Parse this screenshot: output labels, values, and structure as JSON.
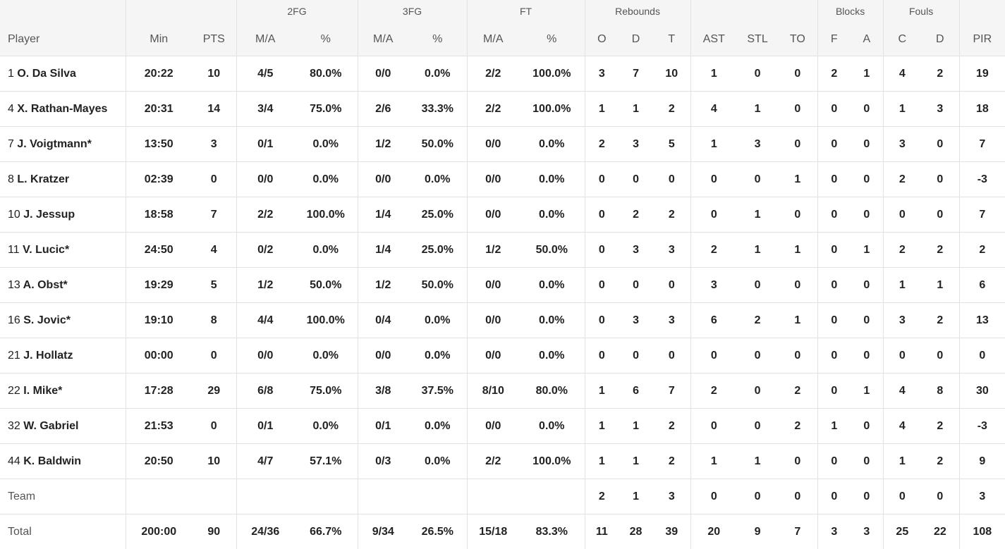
{
  "header": {
    "groups": {
      "fg2": "2FG",
      "fg3": "3FG",
      "ft": "FT",
      "rebounds": "Rebounds",
      "blocks": "Blocks",
      "fouls": "Fouls"
    },
    "columns": {
      "player": "Player",
      "min": "Min",
      "pts": "PTS",
      "fg2_ma": "M/A",
      "fg2_pct": "%",
      "fg3_ma": "M/A",
      "fg3_pct": "%",
      "ft_ma": "M/A",
      "ft_pct": "%",
      "reb_o": "O",
      "reb_d": "D",
      "reb_t": "T",
      "ast": "AST",
      "stl": "STL",
      "to": "TO",
      "blk_f": "F",
      "blk_a": "A",
      "foul_c": "C",
      "foul_d": "D",
      "pir": "PIR"
    }
  },
  "rows": [
    {
      "num": "1",
      "name": "O. Da Silva",
      "min": "20:22",
      "pts": "10",
      "fg2_ma": "4/5",
      "fg2_pct": "80.0%",
      "fg3_ma": "0/0",
      "fg3_pct": "0.0%",
      "ft_ma": "2/2",
      "ft_pct": "100.0%",
      "reb_o": "3",
      "reb_d": "7",
      "reb_t": "10",
      "ast": "1",
      "stl": "0",
      "to": "0",
      "blk_f": "2",
      "blk_a": "1",
      "foul_c": "4",
      "foul_d": "2",
      "pir": "19"
    },
    {
      "num": "4",
      "name": "X. Rathan-Mayes",
      "min": "20:31",
      "pts": "14",
      "fg2_ma": "3/4",
      "fg2_pct": "75.0%",
      "fg3_ma": "2/6",
      "fg3_pct": "33.3%",
      "ft_ma": "2/2",
      "ft_pct": "100.0%",
      "reb_o": "1",
      "reb_d": "1",
      "reb_t": "2",
      "ast": "4",
      "stl": "1",
      "to": "0",
      "blk_f": "0",
      "blk_a": "0",
      "foul_c": "1",
      "foul_d": "3",
      "pir": "18"
    },
    {
      "num": "7",
      "name": "J. Voigtmann*",
      "min": "13:50",
      "pts": "3",
      "fg2_ma": "0/1",
      "fg2_pct": "0.0%",
      "fg3_ma": "1/2",
      "fg3_pct": "50.0%",
      "ft_ma": "0/0",
      "ft_pct": "0.0%",
      "reb_o": "2",
      "reb_d": "3",
      "reb_t": "5",
      "ast": "1",
      "stl": "3",
      "to": "0",
      "blk_f": "0",
      "blk_a": "0",
      "foul_c": "3",
      "foul_d": "0",
      "pir": "7"
    },
    {
      "num": "8",
      "name": "L. Kratzer",
      "min": "02:39",
      "pts": "0",
      "fg2_ma": "0/0",
      "fg2_pct": "0.0%",
      "fg3_ma": "0/0",
      "fg3_pct": "0.0%",
      "ft_ma": "0/0",
      "ft_pct": "0.0%",
      "reb_o": "0",
      "reb_d": "0",
      "reb_t": "0",
      "ast": "0",
      "stl": "0",
      "to": "1",
      "blk_f": "0",
      "blk_a": "0",
      "foul_c": "2",
      "foul_d": "0",
      "pir": "-3"
    },
    {
      "num": "10",
      "name": "J. Jessup",
      "min": "18:58",
      "pts": "7",
      "fg2_ma": "2/2",
      "fg2_pct": "100.0%",
      "fg3_ma": "1/4",
      "fg3_pct": "25.0%",
      "ft_ma": "0/0",
      "ft_pct": "0.0%",
      "reb_o": "0",
      "reb_d": "2",
      "reb_t": "2",
      "ast": "0",
      "stl": "1",
      "to": "0",
      "blk_f": "0",
      "blk_a": "0",
      "foul_c": "0",
      "foul_d": "0",
      "pir": "7"
    },
    {
      "num": "11",
      "name": "V. Lucic*",
      "min": "24:50",
      "pts": "4",
      "fg2_ma": "0/2",
      "fg2_pct": "0.0%",
      "fg3_ma": "1/4",
      "fg3_pct": "25.0%",
      "ft_ma": "1/2",
      "ft_pct": "50.0%",
      "reb_o": "0",
      "reb_d": "3",
      "reb_t": "3",
      "ast": "2",
      "stl": "1",
      "to": "1",
      "blk_f": "0",
      "blk_a": "1",
      "foul_c": "2",
      "foul_d": "2",
      "pir": "2"
    },
    {
      "num": "13",
      "name": "A. Obst*",
      "min": "19:29",
      "pts": "5",
      "fg2_ma": "1/2",
      "fg2_pct": "50.0%",
      "fg3_ma": "1/2",
      "fg3_pct": "50.0%",
      "ft_ma": "0/0",
      "ft_pct": "0.0%",
      "reb_o": "0",
      "reb_d": "0",
      "reb_t": "0",
      "ast": "3",
      "stl": "0",
      "to": "0",
      "blk_f": "0",
      "blk_a": "0",
      "foul_c": "1",
      "foul_d": "1",
      "pir": "6"
    },
    {
      "num": "16",
      "name": "S. Jovic*",
      "min": "19:10",
      "pts": "8",
      "fg2_ma": "4/4",
      "fg2_pct": "100.0%",
      "fg3_ma": "0/4",
      "fg3_pct": "0.0%",
      "ft_ma": "0/0",
      "ft_pct": "0.0%",
      "reb_o": "0",
      "reb_d": "3",
      "reb_t": "3",
      "ast": "6",
      "stl": "2",
      "to": "1",
      "blk_f": "0",
      "blk_a": "0",
      "foul_c": "3",
      "foul_d": "2",
      "pir": "13"
    },
    {
      "num": "21",
      "name": "J. Hollatz",
      "min": "00:00",
      "pts": "0",
      "fg2_ma": "0/0",
      "fg2_pct": "0.0%",
      "fg3_ma": "0/0",
      "fg3_pct": "0.0%",
      "ft_ma": "0/0",
      "ft_pct": "0.0%",
      "reb_o": "0",
      "reb_d": "0",
      "reb_t": "0",
      "ast": "0",
      "stl": "0",
      "to": "0",
      "blk_f": "0",
      "blk_a": "0",
      "foul_c": "0",
      "foul_d": "0",
      "pir": "0"
    },
    {
      "num": "22",
      "name": "I. Mike*",
      "min": "17:28",
      "pts": "29",
      "fg2_ma": "6/8",
      "fg2_pct": "75.0%",
      "fg3_ma": "3/8",
      "fg3_pct": "37.5%",
      "ft_ma": "8/10",
      "ft_pct": "80.0%",
      "reb_o": "1",
      "reb_d": "6",
      "reb_t": "7",
      "ast": "2",
      "stl": "0",
      "to": "2",
      "blk_f": "0",
      "blk_a": "1",
      "foul_c": "4",
      "foul_d": "8",
      "pir": "30"
    },
    {
      "num": "32",
      "name": "W. Gabriel",
      "min": "21:53",
      "pts": "0",
      "fg2_ma": "0/1",
      "fg2_pct": "0.0%",
      "fg3_ma": "0/1",
      "fg3_pct": "0.0%",
      "ft_ma": "0/0",
      "ft_pct": "0.0%",
      "reb_o": "1",
      "reb_d": "1",
      "reb_t": "2",
      "ast": "0",
      "stl": "0",
      "to": "2",
      "blk_f": "1",
      "blk_a": "0",
      "foul_c": "4",
      "foul_d": "2",
      "pir": "-3"
    },
    {
      "num": "44",
      "name": "K. Baldwin",
      "min": "20:50",
      "pts": "10",
      "fg2_ma": "4/7",
      "fg2_pct": "57.1%",
      "fg3_ma": "0/3",
      "fg3_pct": "0.0%",
      "ft_ma": "2/2",
      "ft_pct": "100.0%",
      "reb_o": "1",
      "reb_d": "1",
      "reb_t": "2",
      "ast": "1",
      "stl": "1",
      "to": "0",
      "blk_f": "0",
      "blk_a": "0",
      "foul_c": "1",
      "foul_d": "2",
      "pir": "9"
    }
  ],
  "team": {
    "label": "Team",
    "reb_o": "2",
    "reb_d": "1",
    "reb_t": "3",
    "ast": "0",
    "stl": "0",
    "to": "0",
    "blk_f": "0",
    "blk_a": "0",
    "foul_c": "0",
    "foul_d": "0",
    "pir": "3"
  },
  "total": {
    "label": "Total",
    "min": "200:00",
    "pts": "90",
    "fg2_ma": "24/36",
    "fg2_pct": "66.7%",
    "fg3_ma": "9/34",
    "fg3_pct": "26.5%",
    "ft_ma": "15/18",
    "ft_pct": "83.3%",
    "reb_o": "11",
    "reb_d": "28",
    "reb_t": "39",
    "ast": "20",
    "stl": "9",
    "to": "7",
    "blk_f": "3",
    "blk_a": "3",
    "foul_c": "25",
    "foul_d": "22",
    "pir": "108"
  }
}
